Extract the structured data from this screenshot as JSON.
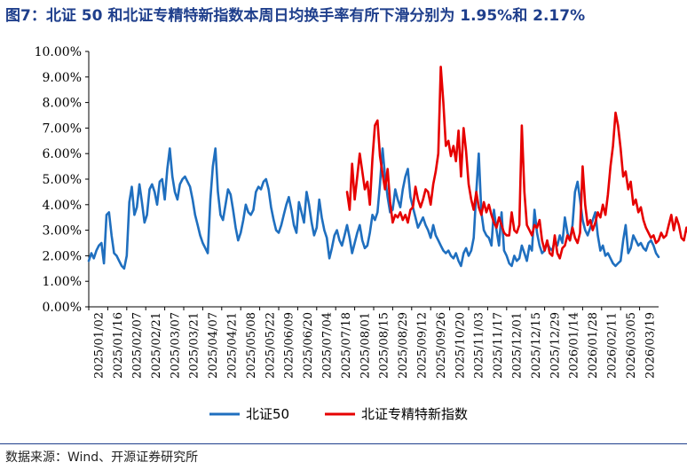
{
  "title": "图7：北证 50 和北证专精特新指数本周日均换手率有所下滑分别为 1.95%和 2.17%",
  "source": "数据来源：Wind、开源证券研究所",
  "colors": {
    "series1": "#1f6fbf",
    "series2": "#e60000",
    "title": "#1f3f8c"
  },
  "chart_data": {
    "type": "line",
    "title": "",
    "xlabel": "",
    "ylabel": "",
    "ylim": [
      0,
      10
    ],
    "y_ticks": [
      "0.00%",
      "1.00%",
      "2.00%",
      "3.00%",
      "4.00%",
      "5.00%",
      "6.00%",
      "7.00%",
      "8.00%",
      "9.00%",
      "10.00%"
    ],
    "x_tick_labels": [
      "2025/01/02",
      "2025/01/16",
      "2025/02/07",
      "2025/02/21",
      "2025/03/07",
      "2025/03/21",
      "2025/04/07",
      "2025/04/21",
      "2025/05/08",
      "2025/05/22",
      "2025/06/09",
      "2025/06/20",
      "2025/07/04",
      "2025/07/18",
      "2025/08/01",
      "2025/08/15",
      "2025/08/29",
      "2025/09/12",
      "2025/09/26",
      "2025/10/20",
      "2025/11/03",
      "2025/11/17",
      "2025/12/01",
      "2025/12/15",
      "2025/12/29",
      "2026/01/14",
      "2026/01/28",
      "2026/02/11",
      "2026/03/05",
      "2026/03/19"
    ],
    "grid": false,
    "legend_position": "bottom",
    "series": [
      {
        "name": "北证50",
        "x_start": 0,
        "values": [
          1.8,
          2.1,
          1.9,
          2.2,
          2.4,
          2.5,
          1.7,
          3.6,
          3.7,
          2.8,
          2.1,
          2.0,
          1.8,
          1.6,
          1.5,
          2.0,
          4.1,
          4.7,
          3.6,
          3.9,
          4.8,
          4.1,
          3.3,
          3.6,
          4.6,
          4.8,
          4.5,
          4.0,
          4.9,
          5.0,
          4.2,
          5.4,
          6.2,
          5.1,
          4.5,
          4.2,
          4.8,
          5.0,
          5.1,
          4.9,
          4.7,
          4.2,
          3.6,
          3.2,
          2.8,
          2.5,
          2.3,
          2.1,
          4.2,
          5.5,
          6.2,
          4.5,
          3.6,
          3.4,
          4.0,
          4.6,
          4.4,
          3.8,
          3.1,
          2.6,
          2.9,
          3.4,
          4.0,
          3.7,
          3.6,
          3.8,
          4.5,
          4.7,
          4.6,
          4.9,
          5.0,
          4.6,
          3.9,
          3.4,
          3.0,
          2.9,
          3.2,
          3.6,
          4.0,
          4.3,
          3.8,
          3.2,
          2.9,
          4.1,
          3.7,
          3.3,
          4.5,
          4.0,
          3.3,
          2.8,
          3.1,
          4.2,
          3.5,
          3.0,
          2.7,
          1.9,
          2.3,
          2.8,
          3.0,
          2.6,
          2.4,
          2.8,
          3.2,
          2.7,
          2.1,
          2.5,
          2.9,
          3.2,
          2.6,
          2.3,
          2.4,
          2.9,
          3.6,
          3.4,
          3.7,
          4.8,
          6.2,
          5.1,
          4.3,
          3.7,
          3.8,
          4.6,
          4.2,
          3.9,
          4.6,
          5.1,
          5.4,
          4.3,
          3.9,
          3.5,
          3.1,
          3.3,
          3.5,
          3.2,
          3.0,
          2.7,
          3.2,
          2.8,
          2.6,
          2.4,
          2.2,
          2.1,
          2.2,
          2.0,
          1.9,
          2.1,
          1.8,
          1.6,
          2.1,
          2.3,
          2.0,
          2.2,
          2.7,
          4.5,
          6.0,
          3.7,
          3.0,
          2.8,
          2.7,
          2.4,
          3.8,
          3.0,
          2.4,
          3.7,
          2.2,
          2.0,
          1.7,
          1.6,
          2.0,
          1.8,
          1.9,
          2.4,
          2.1,
          1.8,
          2.4,
          2.2,
          3.8,
          2.9,
          2.4,
          2.1,
          2.2,
          2.5,
          2.3,
          2.2,
          2.6,
          2.4,
          2.8,
          2.5,
          3.5,
          2.9,
          2.6,
          3.2,
          4.5,
          4.9,
          4.2,
          3.4,
          3.0,
          2.8,
          3.1,
          3.4,
          3.7,
          2.8,
          2.2,
          2.4,
          2.0,
          2.1,
          1.9,
          1.7,
          1.6,
          1.7,
          1.8,
          2.6,
          3.2,
          2.1,
          2.3,
          2.8,
          2.6,
          2.4,
          2.5,
          2.3,
          2.2,
          2.5,
          2.6,
          2.4,
          2.1,
          1.95
        ]
      },
      {
        "name": "北证专精特新指数",
        "x_start": 102,
        "values": [
          4.5,
          3.8,
          5.6,
          4.2,
          5.1,
          6.0,
          5.3,
          4.6,
          4.9,
          4.0,
          5.8,
          7.1,
          7.3,
          5.9,
          5.2,
          4.6,
          5.4,
          4.1,
          3.3,
          3.6,
          3.5,
          3.7,
          3.4,
          3.6,
          3.3,
          3.8,
          3.9,
          4.7,
          4.2,
          3.9,
          4.2,
          4.6,
          4.5,
          4.0,
          4.8,
          5.3,
          6.0,
          9.4,
          8.0,
          6.3,
          6.5,
          5.9,
          6.3,
          5.7,
          6.9,
          5.1,
          7.0,
          6.1,
          4.8,
          4.2,
          3.8,
          4.5,
          3.9,
          3.6,
          4.1,
          3.7,
          4.0,
          3.6,
          3.3,
          3.1,
          3.5,
          3.2,
          2.9,
          2.8,
          2.8,
          3.7,
          3.0,
          2.9,
          3.2,
          7.1,
          4.5,
          3.2,
          3.0,
          2.8,
          3.2,
          3.1,
          3.4,
          2.6,
          2.2,
          2.6,
          2.1,
          2.0,
          2.8,
          2.1,
          1.9,
          2.3,
          2.4,
          2.8,
          2.6,
          3.1,
          2.7,
          2.5,
          2.9,
          5.5,
          4.0,
          3.2,
          3.4,
          3.0,
          3.3,
          3.7,
          3.5,
          4.0,
          3.6,
          4.4,
          5.5,
          6.3,
          7.6,
          7.1,
          6.2,
          5.1,
          5.3,
          4.6,
          4.9,
          4.0,
          4.2,
          3.7,
          3.9,
          3.4,
          3.1,
          2.9,
          2.7,
          2.8,
          2.5,
          2.6,
          2.9,
          2.7,
          2.8,
          3.2,
          3.6,
          3.0,
          3.5,
          3.2,
          2.7,
          2.6,
          3.1,
          2.8,
          2.4,
          2.17
        ]
      }
    ]
  },
  "legend": {
    "series1_label": "北证50",
    "series2_label": "北证专精特新指数"
  }
}
